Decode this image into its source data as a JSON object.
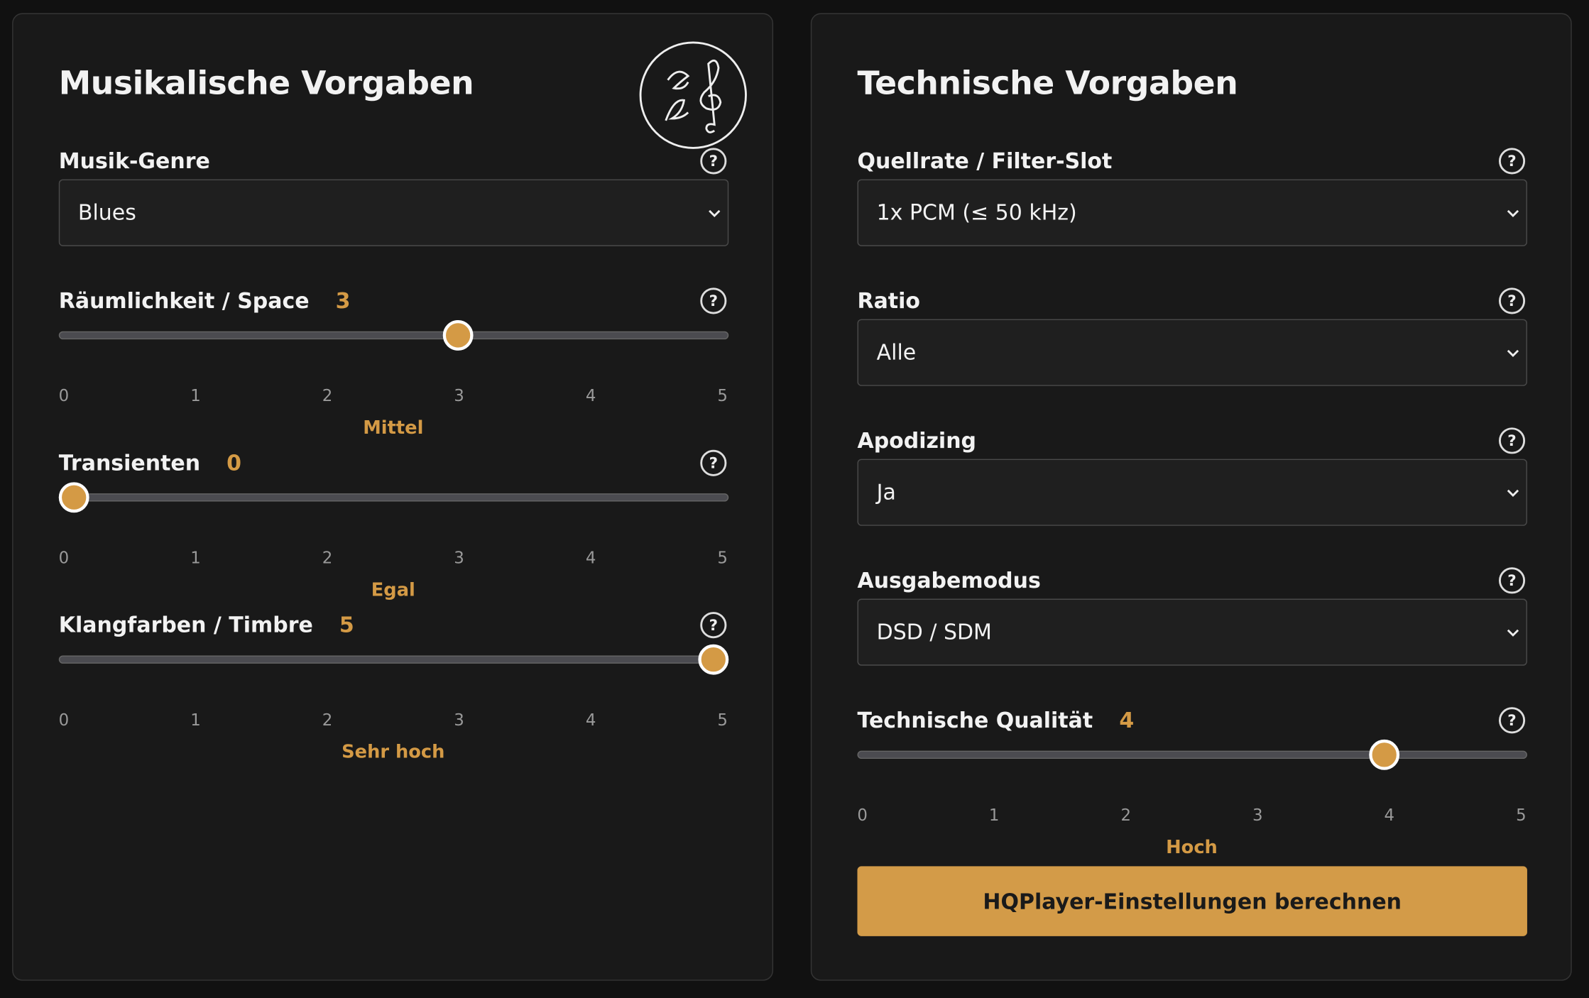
{
  "help_label": "?",
  "left_panel": {
    "title": "Musikalische Vorgaben",
    "genre": {
      "label": "Musik-Genre",
      "value": "Blues"
    },
    "sliders": [
      {
        "label": "Räumlichkeit / Space",
        "value": 3,
        "ticks": [
          0,
          1,
          2,
          3,
          4,
          5
        ],
        "description": "Mittel"
      },
      {
        "label": "Transienten",
        "value": 0,
        "ticks": [
          0,
          1,
          2,
          3,
          4,
          5
        ],
        "description": "Egal"
      },
      {
        "label": "Klangfarben / Timbre",
        "value": 5,
        "ticks": [
          0,
          1,
          2,
          3,
          4,
          5
        ],
        "description": "Sehr hoch"
      }
    ]
  },
  "right_panel": {
    "title": "Technische Vorgaben",
    "selects": [
      {
        "label": "Quellrate / Filter-Slot",
        "value": "1x PCM (≤ 50 kHz)"
      },
      {
        "label": "Ratio",
        "value": "Alle"
      },
      {
        "label": "Apodizing",
        "value": "Ja"
      },
      {
        "label": "Ausgabemodus",
        "value": "DSD / SDM"
      }
    ],
    "slider": {
      "label": "Technische Qualität",
      "value": 4,
      "ticks": [
        0,
        1,
        2,
        3,
        4,
        5
      ],
      "description": "Hoch"
    },
    "button": "HQPlayer-Einstellungen berechnen"
  }
}
